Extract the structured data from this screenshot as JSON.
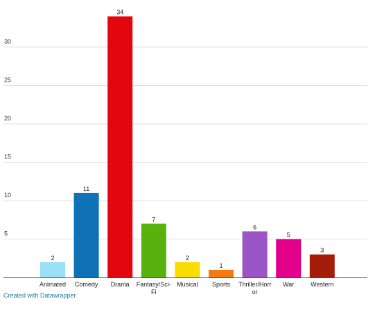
{
  "chart_data": {
    "type": "bar",
    "categories": [
      "Animated",
      "Comedy",
      "Drama",
      "Fantasy/Sci-Fi",
      "Musical",
      "Sports",
      "Thriller/Horror",
      "War",
      "Western"
    ],
    "category_label_lines": [
      [
        "Animated"
      ],
      [
        "Comedy"
      ],
      [
        "Drama"
      ],
      [
        "Fantasy/Sci-",
        "Fi"
      ],
      [
        "Musical"
      ],
      [
        "Sports"
      ],
      [
        "Thriller/Horr",
        "or"
      ],
      [
        "War"
      ],
      [
        "Western"
      ]
    ],
    "values": [
      2,
      11,
      34,
      7,
      2,
      1,
      6,
      5,
      3
    ],
    "colors": [
      "#9ae0f8",
      "#0f72b6",
      "#e4060f",
      "#57b20e",
      "#fadc00",
      "#f47a13",
      "#9b55c4",
      "#e3008b",
      "#a51d08"
    ],
    "yticks": [
      5,
      10,
      15,
      20,
      25,
      30
    ],
    "ylim": [
      0,
      34
    ],
    "grid": true,
    "legend": "none",
    "title": "",
    "xlabel": "",
    "ylabel": ""
  },
  "footer": {
    "credit": "Created with Datawrapper"
  }
}
